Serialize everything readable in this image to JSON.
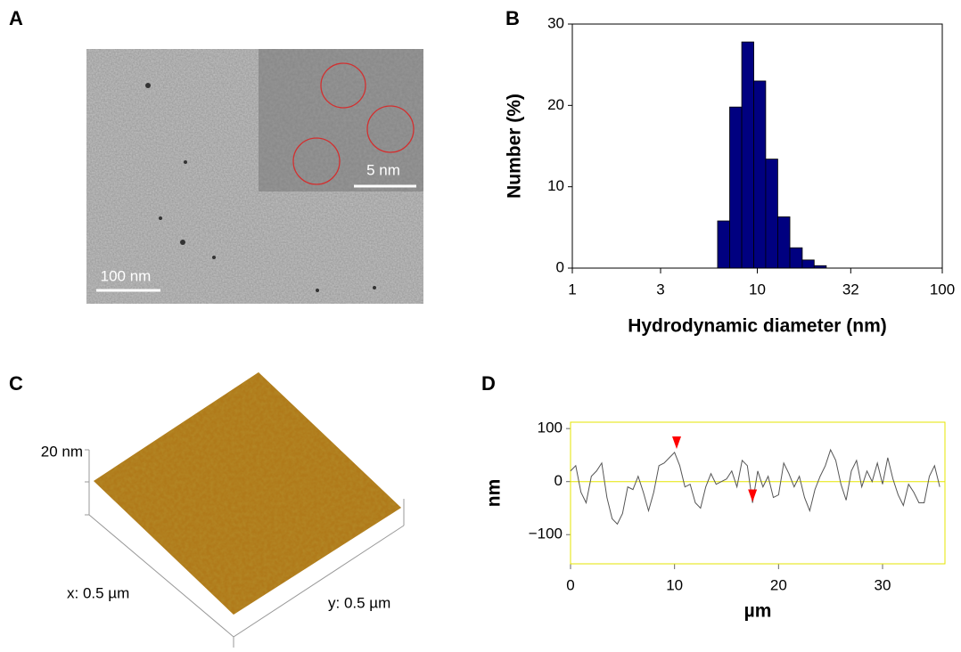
{
  "panel_labels": [
    "A",
    "B",
    "C",
    "D"
  ],
  "tem_image": {
    "scale_bar": "100 nm",
    "inset_scale_bar": "5 nm"
  },
  "afm_image": {
    "z_label": "20 nm",
    "x_label": "x: 0.5 µm",
    "y_label": "y: 0.5 µm"
  },
  "chart_data": [
    {
      "type": "histogram",
      "xlabel": "Hydrodynamic diameter (nm)",
      "ylabel": "Number (%)",
      "bins": [
        6.1,
        7.09,
        8.24,
        9.57,
        11.1,
        12.9,
        15.0,
        17.5,
        20.3,
        23.6
      ],
      "values": [
        5.8,
        19.8,
        27.8,
        23.0,
        13.4,
        6.3,
        2.5,
        1.0,
        0.3
      ],
      "color": "#000080",
      "xscale": "log",
      "xlim": [
        1,
        100
      ],
      "xticks": [
        1,
        3,
        10,
        32,
        100
      ],
      "ylim": [
        0,
        30
      ],
      "yticks": [
        0,
        10,
        20,
        30
      ]
    },
    {
      "type": "line",
      "xlabel": "µm",
      "ylabel": "nm",
      "color": "#555555",
      "x": [
        0,
        0.5,
        1,
        1.5,
        2,
        2.5,
        3,
        3.5,
        4,
        4.5,
        5,
        5.5,
        6,
        6.5,
        7,
        7.5,
        8,
        8.5,
        9,
        9.5,
        10,
        10.5,
        11,
        11.5,
        12,
        12.5,
        13,
        13.5,
        14,
        14.5,
        15,
        15.5,
        16,
        16.5,
        17,
        17.5,
        18,
        18.5,
        19,
        19.5,
        20,
        20.5,
        21,
        21.5,
        22,
        22.5,
        23,
        23.5,
        24,
        24.5,
        25,
        25.5,
        26,
        26.5,
        27,
        27.5,
        28,
        28.5,
        29,
        29.5,
        30,
        30.5,
        31,
        31.5,
        32,
        32.5,
        33,
        33.5,
        34,
        34.5,
        35,
        35.5
      ],
      "values": [
        20,
        30,
        -20,
        -40,
        10,
        20,
        35,
        -30,
        -70,
        -80,
        -60,
        -10,
        -15,
        10,
        -20,
        -55,
        -20,
        30,
        35,
        45,
        55,
        30,
        -10,
        -5,
        -40,
        -50,
        -10,
        15,
        -5,
        0,
        5,
        20,
        -10,
        40,
        30,
        -40,
        20,
        -10,
        10,
        -30,
        -25,
        35,
        15,
        -10,
        10,
        -30,
        -55,
        -15,
        10,
        30,
        60,
        40,
        -5,
        -35,
        20,
        40,
        -10,
        20,
        0,
        35,
        -5,
        45,
        5,
        -25,
        -45,
        -5,
        -20,
        -40,
        -40,
        10,
        30,
        -10
      ],
      "markers": {
        "x": [
          10.2,
          17.5
        ],
        "y": [
          70,
          -30
        ],
        "color": "#ff0000"
      },
      "xlim": [
        0,
        36
      ],
      "xticks": [
        0,
        10,
        20,
        30
      ],
      "ylim": [
        -155,
        112
      ],
      "yticks": [
        {
          "value": -100,
          "label": "−100"
        },
        0,
        100
      ],
      "zero_line_color": "#e6e600",
      "frame_color": "#e6e600"
    }
  ]
}
